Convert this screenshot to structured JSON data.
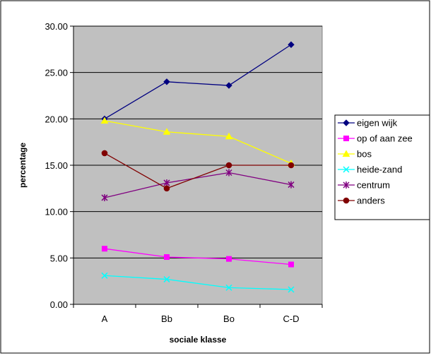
{
  "chart_data": {
    "type": "line",
    "title": "",
    "xlabel": "sociale klasse",
    "ylabel": "percentage",
    "categories": [
      "A",
      "Bb",
      "Bo",
      "C-D"
    ],
    "ylim": [
      0,
      30
    ],
    "yticks": [
      "0.00",
      "5.00",
      "10.00",
      "15.00",
      "20.00",
      "25.00",
      "30.00"
    ],
    "ytick_values": [
      0,
      5,
      10,
      15,
      20,
      25,
      30
    ],
    "grid": true,
    "legend_position": "right",
    "plot_background": "#c0c0c0",
    "series": [
      {
        "name": "eigen wijk",
        "values": [
          20.0,
          24.0,
          23.6,
          28.0
        ],
        "color": "#000080",
        "marker": "diamond"
      },
      {
        "name": "op of aan zee",
        "values": [
          6.0,
          5.1,
          4.9,
          4.3
        ],
        "color": "#ff00ff",
        "marker": "square"
      },
      {
        "name": "bos",
        "values": [
          19.8,
          18.6,
          18.1,
          15.2
        ],
        "color": "#ffff00",
        "marker": "triangle"
      },
      {
        "name": "heide-zand",
        "values": [
          3.1,
          2.7,
          1.8,
          1.6
        ],
        "color": "#00ffff",
        "marker": "x"
      },
      {
        "name": "centrum",
        "values": [
          11.5,
          13.1,
          14.2,
          12.9
        ],
        "color": "#800080",
        "marker": "star"
      },
      {
        "name": "anders",
        "values": [
          16.3,
          12.5,
          15.0,
          15.0
        ],
        "color": "#800000",
        "marker": "circle"
      }
    ]
  }
}
